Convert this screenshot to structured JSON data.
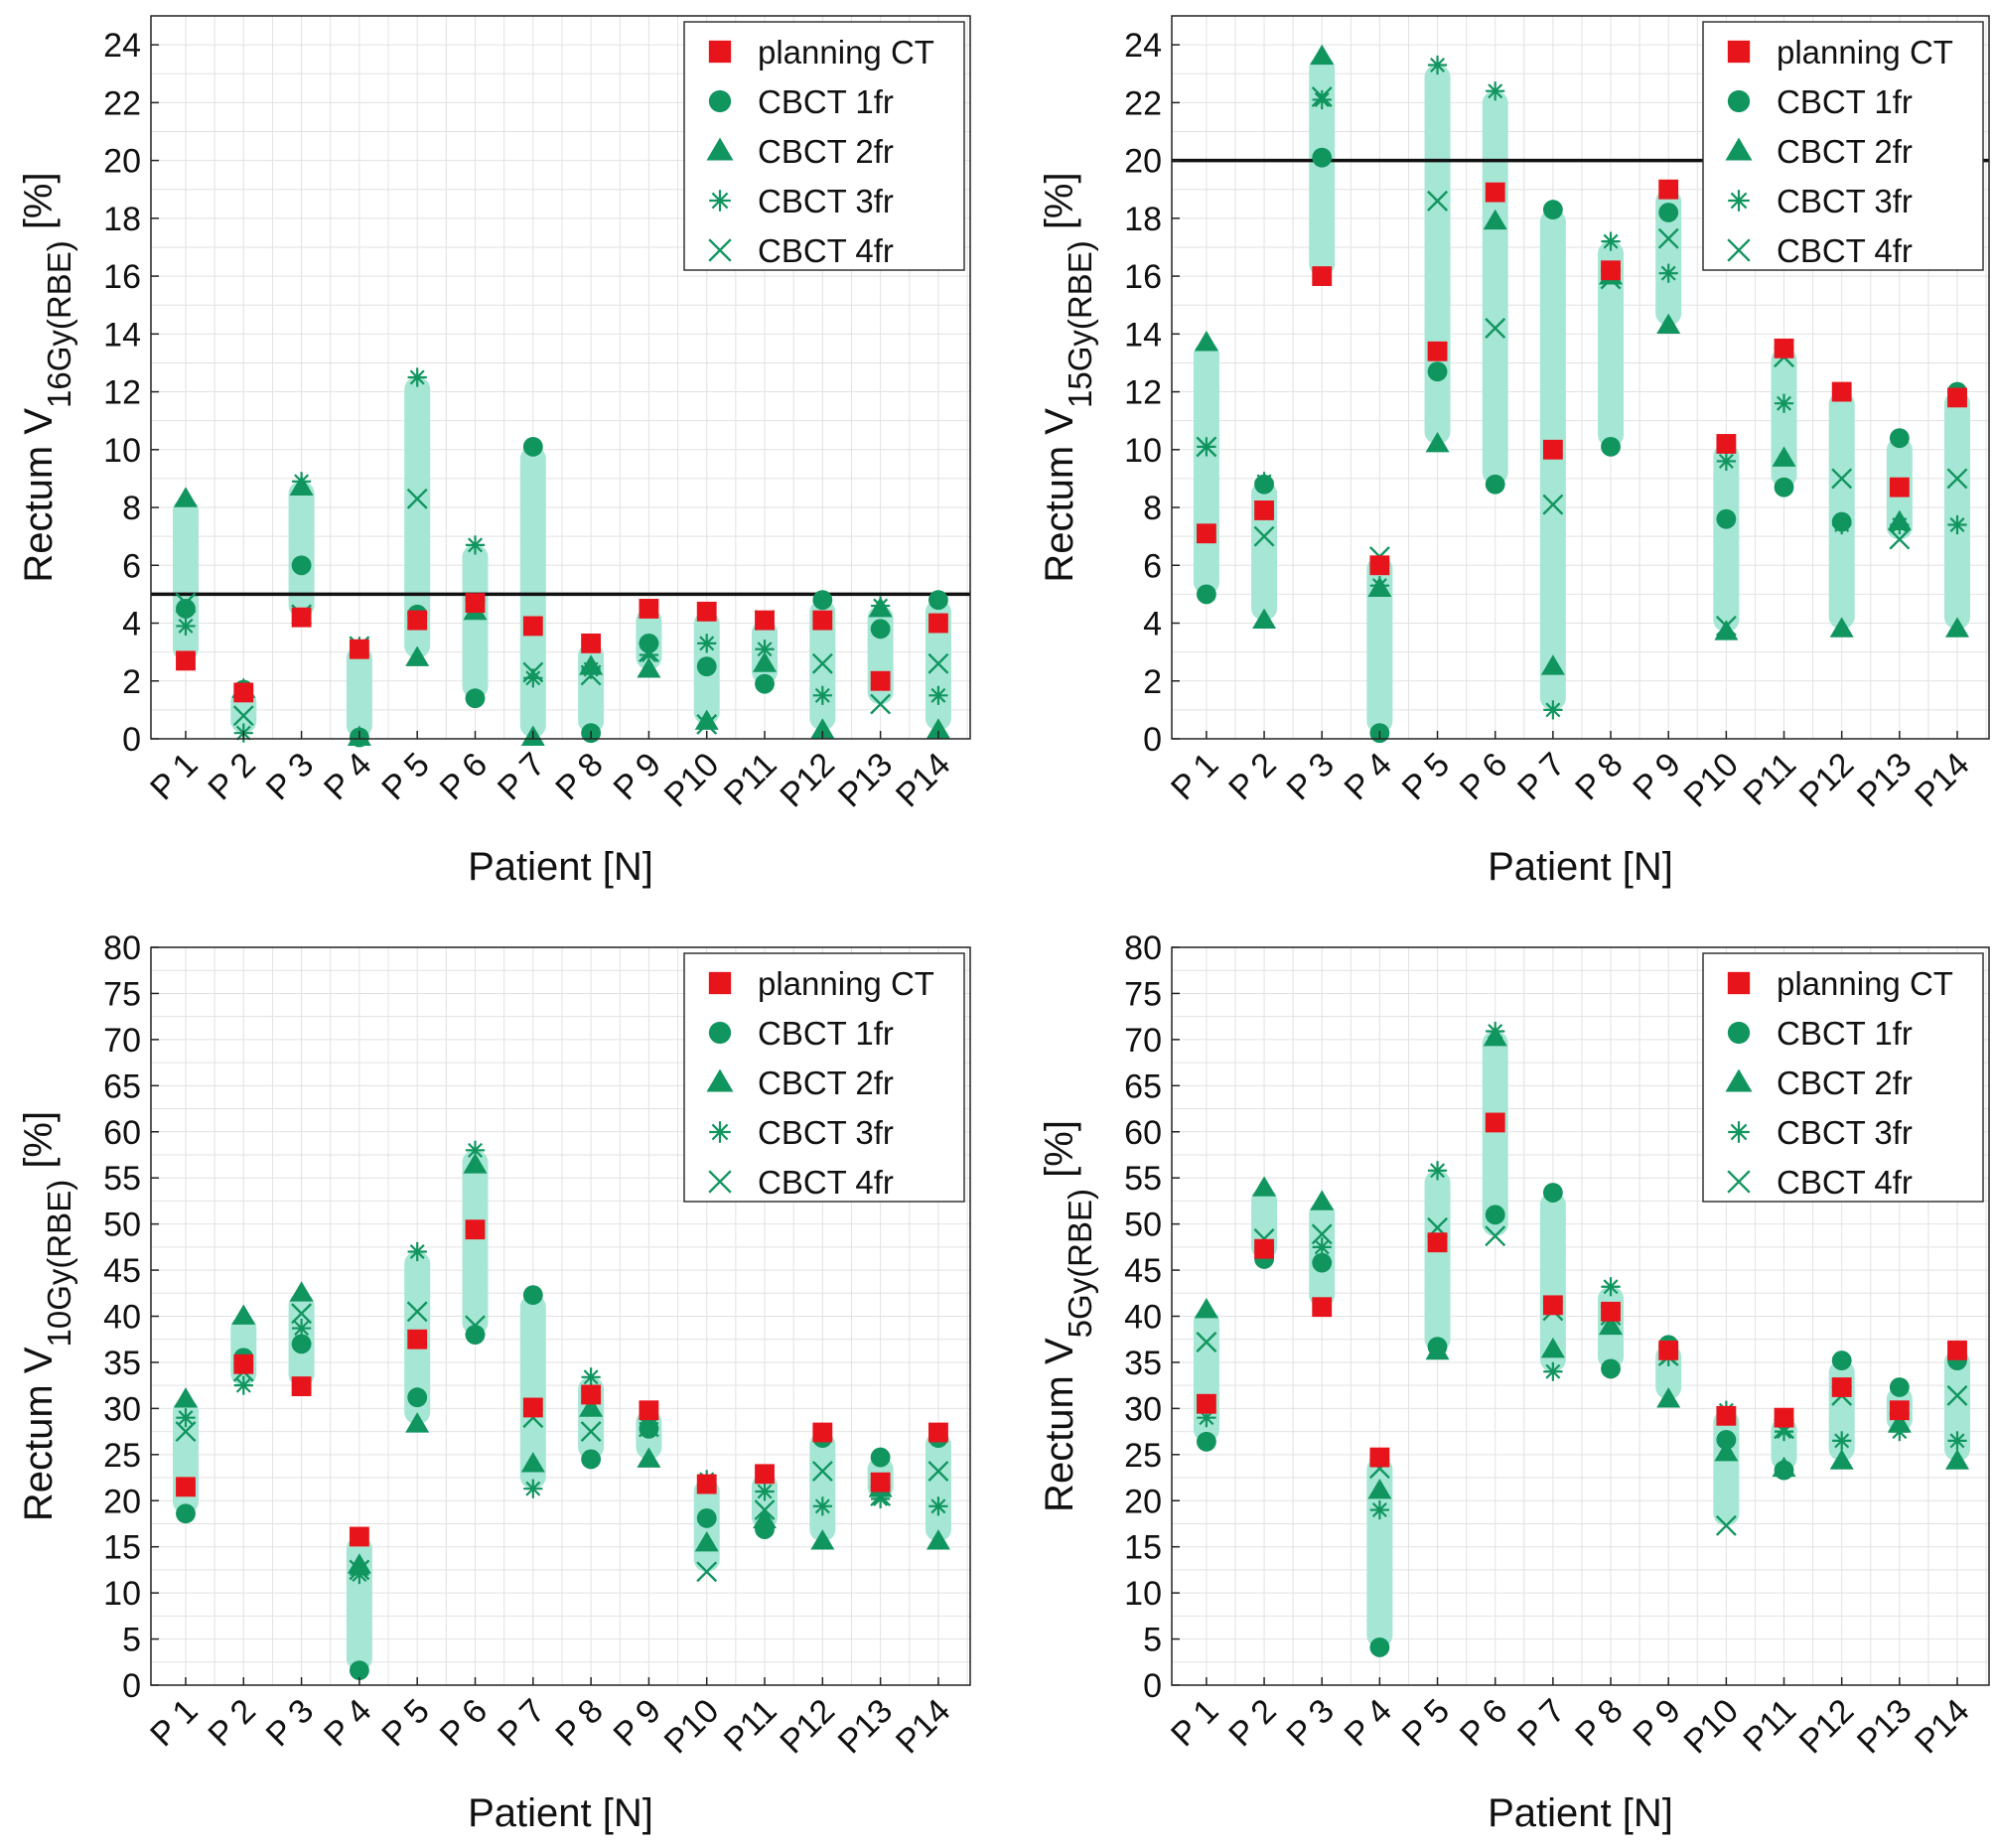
{
  "colors": {
    "planning": "#e8141c",
    "cbct": "#11955f",
    "band": "#a6e6d5",
    "threshold": "#111111",
    "grid": "#e2e2e2"
  },
  "chart_data": [
    {
      "type": "scatter",
      "panel": "top-left",
      "ylabel_prefix": "Rectum   V",
      "ylabel_sub": "16Gy(RBE)",
      "ylabel_unit": "[%]",
      "xlabel": "Patient [N]",
      "categories": [
        "P 1",
        "P 2",
        "P 3",
        "P 4",
        "P 5",
        "P 6",
        "P 7",
        "P 8",
        "P 9",
        "P10",
        "P11",
        "P12",
        "P13",
        "P14"
      ],
      "ylim": [
        0,
        25
      ],
      "yticks": [
        0,
        2,
        4,
        6,
        8,
        10,
        12,
        14,
        16,
        18,
        20,
        22,
        24
      ],
      "threshold": 5,
      "grid": true,
      "legend_position": "top-right",
      "legend": [
        "planning CT",
        "CBCT 1fr",
        "CBCT 2fr",
        "CBCT 3fr",
        "CBCT 4fr"
      ],
      "series": [
        {
          "name": "planning CT",
          "marker": "square",
          "values": [
            2.7,
            1.6,
            4.2,
            3.1,
            4.1,
            4.7,
            3.9,
            3.3,
            4.5,
            4.4,
            4.1,
            4.1,
            2.0,
            4.0
          ]
        },
        {
          "name": "CBCT 1fr",
          "marker": "circle",
          "values": [
            4.5,
            1.7,
            6.0,
            0.05,
            4.3,
            1.4,
            10.1,
            0.2,
            3.3,
            2.5,
            1.9,
            4.8,
            3.8,
            4.8
          ]
        },
        {
          "name": "CBCT 2fr",
          "marker": "triangle",
          "values": [
            8.3,
            1.7,
            8.7,
            0.05,
            2.8,
            4.4,
            0.05,
            2.5,
            2.4,
            0.6,
            2.6,
            0.3,
            4.5,
            0.3
          ]
        },
        {
          "name": "CBCT 3fr",
          "marker": "asterisk",
          "values": [
            3.9,
            0.2,
            8.9,
            3.2,
            12.5,
            6.7,
            2.1,
            2.4,
            2.9,
            3.3,
            3.1,
            1.5,
            4.6,
            1.5
          ]
        },
        {
          "name": "CBCT 4fr",
          "marker": "cross",
          "values": [
            4.7,
            0.8,
            4.3,
            3.2,
            8.3,
            4.5,
            2.3,
            2.2,
            3.0,
            0.5,
            4.1,
            2.6,
            1.2,
            2.6
          ]
        }
      ]
    },
    {
      "type": "scatter",
      "panel": "top-right",
      "ylabel_prefix": "Rectum   V",
      "ylabel_sub": "15Gy(RBE)",
      "ylabel_unit": "[%]",
      "xlabel": "Patient [N]",
      "categories": [
        "P 1",
        "P 2",
        "P 3",
        "P 4",
        "P 5",
        "P 6",
        "P 7",
        "P 8",
        "P 9",
        "P10",
        "P11",
        "P12",
        "P13",
        "P14"
      ],
      "ylim": [
        0,
        25
      ],
      "yticks": [
        0,
        2,
        4,
        6,
        8,
        10,
        12,
        14,
        16,
        18,
        20,
        22,
        24
      ],
      "threshold": 20,
      "grid": true,
      "legend_position": "top-right",
      "legend": [
        "planning CT",
        "CBCT 1fr",
        "CBCT 2fr",
        "CBCT 3fr",
        "CBCT 4fr"
      ],
      "series": [
        {
          "name": "planning CT",
          "marker": "square",
          "values": [
            7.1,
            7.9,
            16.0,
            6.0,
            13.4,
            18.9,
            10.0,
            16.2,
            19.0,
            10.2,
            13.5,
            12.0,
            8.7,
            11.8
          ]
        },
        {
          "name": "CBCT 1fr",
          "marker": "circle",
          "values": [
            5.0,
            8.8,
            20.1,
            0.2,
            12.7,
            8.8,
            18.3,
            10.1,
            18.2,
            7.6,
            8.7,
            7.5,
            10.4,
            12.0
          ]
        },
        {
          "name": "CBCT 2fr",
          "marker": "triangle",
          "values": [
            13.7,
            4.1,
            23.6,
            5.2,
            10.2,
            17.9,
            2.5,
            16.0,
            14.3,
            3.7,
            9.7,
            3.8,
            7.5,
            3.8
          ]
        },
        {
          "name": "CBCT 3fr",
          "marker": "asterisk",
          "values": [
            10.1,
            8.9,
            22.1,
            5.3,
            23.3,
            22.4,
            1.0,
            17.2,
            16.1,
            9.6,
            11.6,
            7.4,
            7.4,
            7.4
          ]
        },
        {
          "name": "CBCT 4fr",
          "marker": "cross",
          "values": [
            10.1,
            7.0,
            22.2,
            6.3,
            18.6,
            14.2,
            8.1,
            15.9,
            17.3,
            3.9,
            13.2,
            9.0,
            6.9,
            9.0
          ]
        }
      ]
    },
    {
      "type": "scatter",
      "panel": "bottom-left",
      "ylabel_prefix": "Rectum   V",
      "ylabel_sub": "10Gy(RBE)",
      "ylabel_unit": "[%]",
      "xlabel": "Patient [N]",
      "categories": [
        "P 1",
        "P 2",
        "P 3",
        "P 4",
        "P 5",
        "P 6",
        "P 7",
        "P 8",
        "P 9",
        "P10",
        "P11",
        "P12",
        "P13",
        "P14"
      ],
      "ylim": [
        0,
        80
      ],
      "yticks": [
        0,
        5,
        10,
        15,
        20,
        25,
        30,
        35,
        40,
        45,
        50,
        55,
        60,
        65,
        70,
        75,
        80
      ],
      "threshold": null,
      "grid": true,
      "legend_position": "top-right",
      "legend": [
        "planning CT",
        "CBCT 1fr",
        "CBCT 2fr",
        "CBCT 3fr",
        "CBCT 4fr"
      ],
      "series": [
        {
          "name": "planning CT",
          "marker": "square",
          "values": [
            21.5,
            34.8,
            32.4,
            16.1,
            37.5,
            49.4,
            30.1,
            31.5,
            29.8,
            21.8,
            22.9,
            27.4,
            22.0,
            27.4
          ]
        },
        {
          "name": "CBCT 1fr",
          "marker": "circle",
          "values": [
            18.6,
            35.5,
            37.0,
            1.6,
            31.2,
            38.0,
            42.3,
            24.5,
            27.8,
            18.1,
            16.9,
            26.8,
            24.7,
            26.8
          ]
        },
        {
          "name": "CBCT 2fr",
          "marker": "triangle",
          "values": [
            31.0,
            40.0,
            42.5,
            13.0,
            28.3,
            56.4,
            24.0,
            30.0,
            24.5,
            15.4,
            17.9,
            15.6,
            21.3,
            15.6
          ]
        },
        {
          "name": "CBCT 3fr",
          "marker": "asterisk",
          "values": [
            29.0,
            32.5,
            38.7,
            12.0,
            47.0,
            58.0,
            21.3,
            33.4,
            28.4,
            22.3,
            21.0,
            19.4,
            20.2,
            19.4
          ]
        },
        {
          "name": "CBCT 4fr",
          "marker": "cross",
          "values": [
            27.5,
            34.0,
            40.3,
            12.5,
            40.5,
            39.0,
            29.0,
            27.5,
            28.0,
            12.3,
            19.0,
            23.2,
            20.5,
            23.2
          ]
        }
      ]
    },
    {
      "type": "scatter",
      "panel": "bottom-right",
      "ylabel_prefix": "Rectum   V",
      "ylabel_sub": "5Gy(RBE)",
      "ylabel_unit": "[%]",
      "xlabel": "Patient [N]",
      "categories": [
        "P 1",
        "P 2",
        "P 3",
        "P 4",
        "P 5",
        "P 6",
        "P 7",
        "P 8",
        "P 9",
        "P10",
        "P11",
        "P12",
        "P13",
        "P14"
      ],
      "ylim": [
        0,
        80
      ],
      "yticks": [
        0,
        5,
        10,
        15,
        20,
        25,
        30,
        35,
        40,
        45,
        50,
        55,
        60,
        65,
        70,
        75,
        80
      ],
      "threshold": null,
      "grid": true,
      "legend_position": "top-right",
      "legend": [
        "planning CT",
        "CBCT 1fr",
        "CBCT 2fr",
        "CBCT 3fr",
        "CBCT 4fr"
      ],
      "series": [
        {
          "name": "planning CT",
          "marker": "square",
          "values": [
            30.5,
            47.3,
            41.0,
            24.7,
            48.0,
            61.0,
            41.2,
            40.5,
            36.3,
            29.2,
            29.0,
            32.3,
            29.8,
            36.3
          ]
        },
        {
          "name": "CBCT 1fr",
          "marker": "circle",
          "values": [
            26.4,
            46.2,
            45.8,
            4.1,
            36.7,
            51.0,
            53.4,
            34.3,
            36.9,
            26.6,
            23.3,
            35.2,
            32.3,
            35.2
          ]
        },
        {
          "name": "CBCT 2fr",
          "marker": "triangle",
          "values": [
            40.7,
            53.9,
            52.4,
            21.1,
            36.2,
            70.2,
            36.4,
            38.9,
            31.0,
            25.2,
            23.5,
            24.3,
            28.3,
            24.3
          ]
        },
        {
          "name": "CBCT 3fr",
          "marker": "asterisk",
          "values": [
            29.0,
            47.4,
            47.5,
            19.0,
            55.8,
            70.9,
            34.0,
            43.2,
            35.6,
            29.8,
            27.5,
            26.5,
            27.5,
            26.5
          ]
        },
        {
          "name": "CBCT 4fr",
          "marker": "cross",
          "values": [
            37.2,
            48.4,
            48.9,
            23.5,
            49.6,
            48.7,
            40.6,
            40.1,
            35.7,
            17.3,
            27.8,
            31.4,
            28.5,
            31.4
          ]
        }
      ]
    }
  ]
}
